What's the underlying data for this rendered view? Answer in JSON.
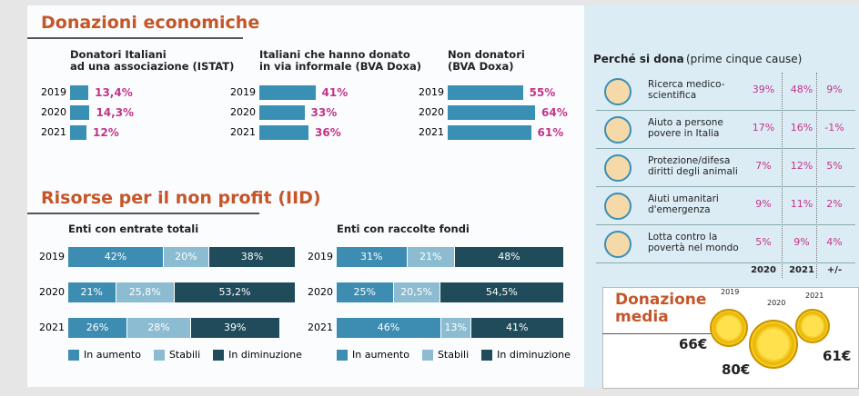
{
  "sections": [
    "Donazioni economiche",
    "Risorse per il non profit (IID)"
  ],
  "chart_data": [
    {
      "type": "bar",
      "title": "Donatori Italiani\nad una associazione (ISTAT)",
      "categories": [
        "2019",
        "2020",
        "2021"
      ],
      "values": [
        13.4,
        14.3,
        12
      ],
      "value_labels": [
        "13,4%",
        "14,3%",
        "12%"
      ],
      "color": "#3a8fb5",
      "label_color": "#c2358a"
    },
    {
      "type": "bar",
      "title": "Italiani che hanno donato\nin via informale (BVA Doxa)",
      "categories": [
        "2019",
        "2020",
        "2021"
      ],
      "values": [
        41,
        33,
        36
      ],
      "value_labels": [
        "41%",
        "33%",
        "36%"
      ],
      "color": "#3a8fb5",
      "label_color": "#c2358a"
    },
    {
      "type": "bar",
      "title": "Non donatori\n(BVA Doxa)",
      "categories": [
        "2019",
        "2020",
        "2021"
      ],
      "values": [
        55,
        64,
        61
      ],
      "value_labels": [
        "55%",
        "64%",
        "61%"
      ],
      "color": "#3a8fb5",
      "label_color": "#c2358a"
    },
    {
      "type": "stacked_bar",
      "title": "Enti con entrate totali",
      "categories": [
        "2019",
        "2020",
        "2021"
      ],
      "legend": "bottom",
      "series": [
        {
          "name": "In aumento",
          "color": "#3d8db3",
          "values": [
            42,
            21,
            26
          ],
          "value_labels": [
            "42%",
            "21%",
            "26%"
          ]
        },
        {
          "name": "Stabili",
          "color": "#8cbcd1",
          "values": [
            20,
            25.8,
            28
          ],
          "value_labels": [
            "20%",
            "25,8%",
            "28%"
          ]
        },
        {
          "name": "In diminuzione",
          "color": "#1f4b5a",
          "values": [
            38,
            53.2,
            39
          ],
          "value_labels": [
            "38%",
            "53,2%",
            "39%"
          ]
        }
      ]
    },
    {
      "type": "stacked_bar",
      "title": "Enti con raccolte fondi",
      "categories": [
        "2019",
        "2020",
        "2021"
      ],
      "legend": "bottom",
      "series": [
        {
          "name": "In aumento",
          "color": "#3d8db3",
          "values": [
            31,
            25,
            46
          ],
          "value_labels": [
            "31%",
            "25%",
            "46%"
          ]
        },
        {
          "name": "Stabili",
          "color": "#8cbcd1",
          "values": [
            21,
            20.5,
            13
          ],
          "value_labels": [
            "21%",
            "20,5%",
            "13%"
          ]
        },
        {
          "name": "In diminuzione",
          "color": "#1f4b5a",
          "values": [
            48,
            54.5,
            41
          ],
          "value_labels": [
            "48%",
            "54,5%",
            "41%"
          ]
        }
      ]
    }
  ],
  "perche": {
    "title": "Perché si dona",
    "subtitle": "(prime cinque cause)",
    "columns": [
      "2020",
      "2021",
      "+/-"
    ],
    "rows": [
      {
        "cause": "Ricerca medico-\nscientifica",
        "values": [
          "39%",
          "48%",
          "9%"
        ]
      },
      {
        "cause": "Aiuto a persone\npovere in Italia",
        "values": [
          "17%",
          "16%",
          "-1%"
        ]
      },
      {
        "cause": "Protezione/difesa\ndiritti degli animali",
        "values": [
          "7%",
          "12%",
          "5%"
        ]
      },
      {
        "cause": "Aiuti umanitari\nd'emergenza",
        "values": [
          "9%",
          "11%",
          "2%"
        ]
      },
      {
        "cause": "Lotta contro la\npovertà nel mondo",
        "values": [
          "5%",
          "9%",
          "4%"
        ]
      }
    ]
  },
  "donazione_media": {
    "title": "Donazione\nmedia",
    "years": [
      "2019",
      "2020",
      "2021"
    ],
    "amounts": [
      "66€",
      "80€",
      "61€"
    ]
  }
}
